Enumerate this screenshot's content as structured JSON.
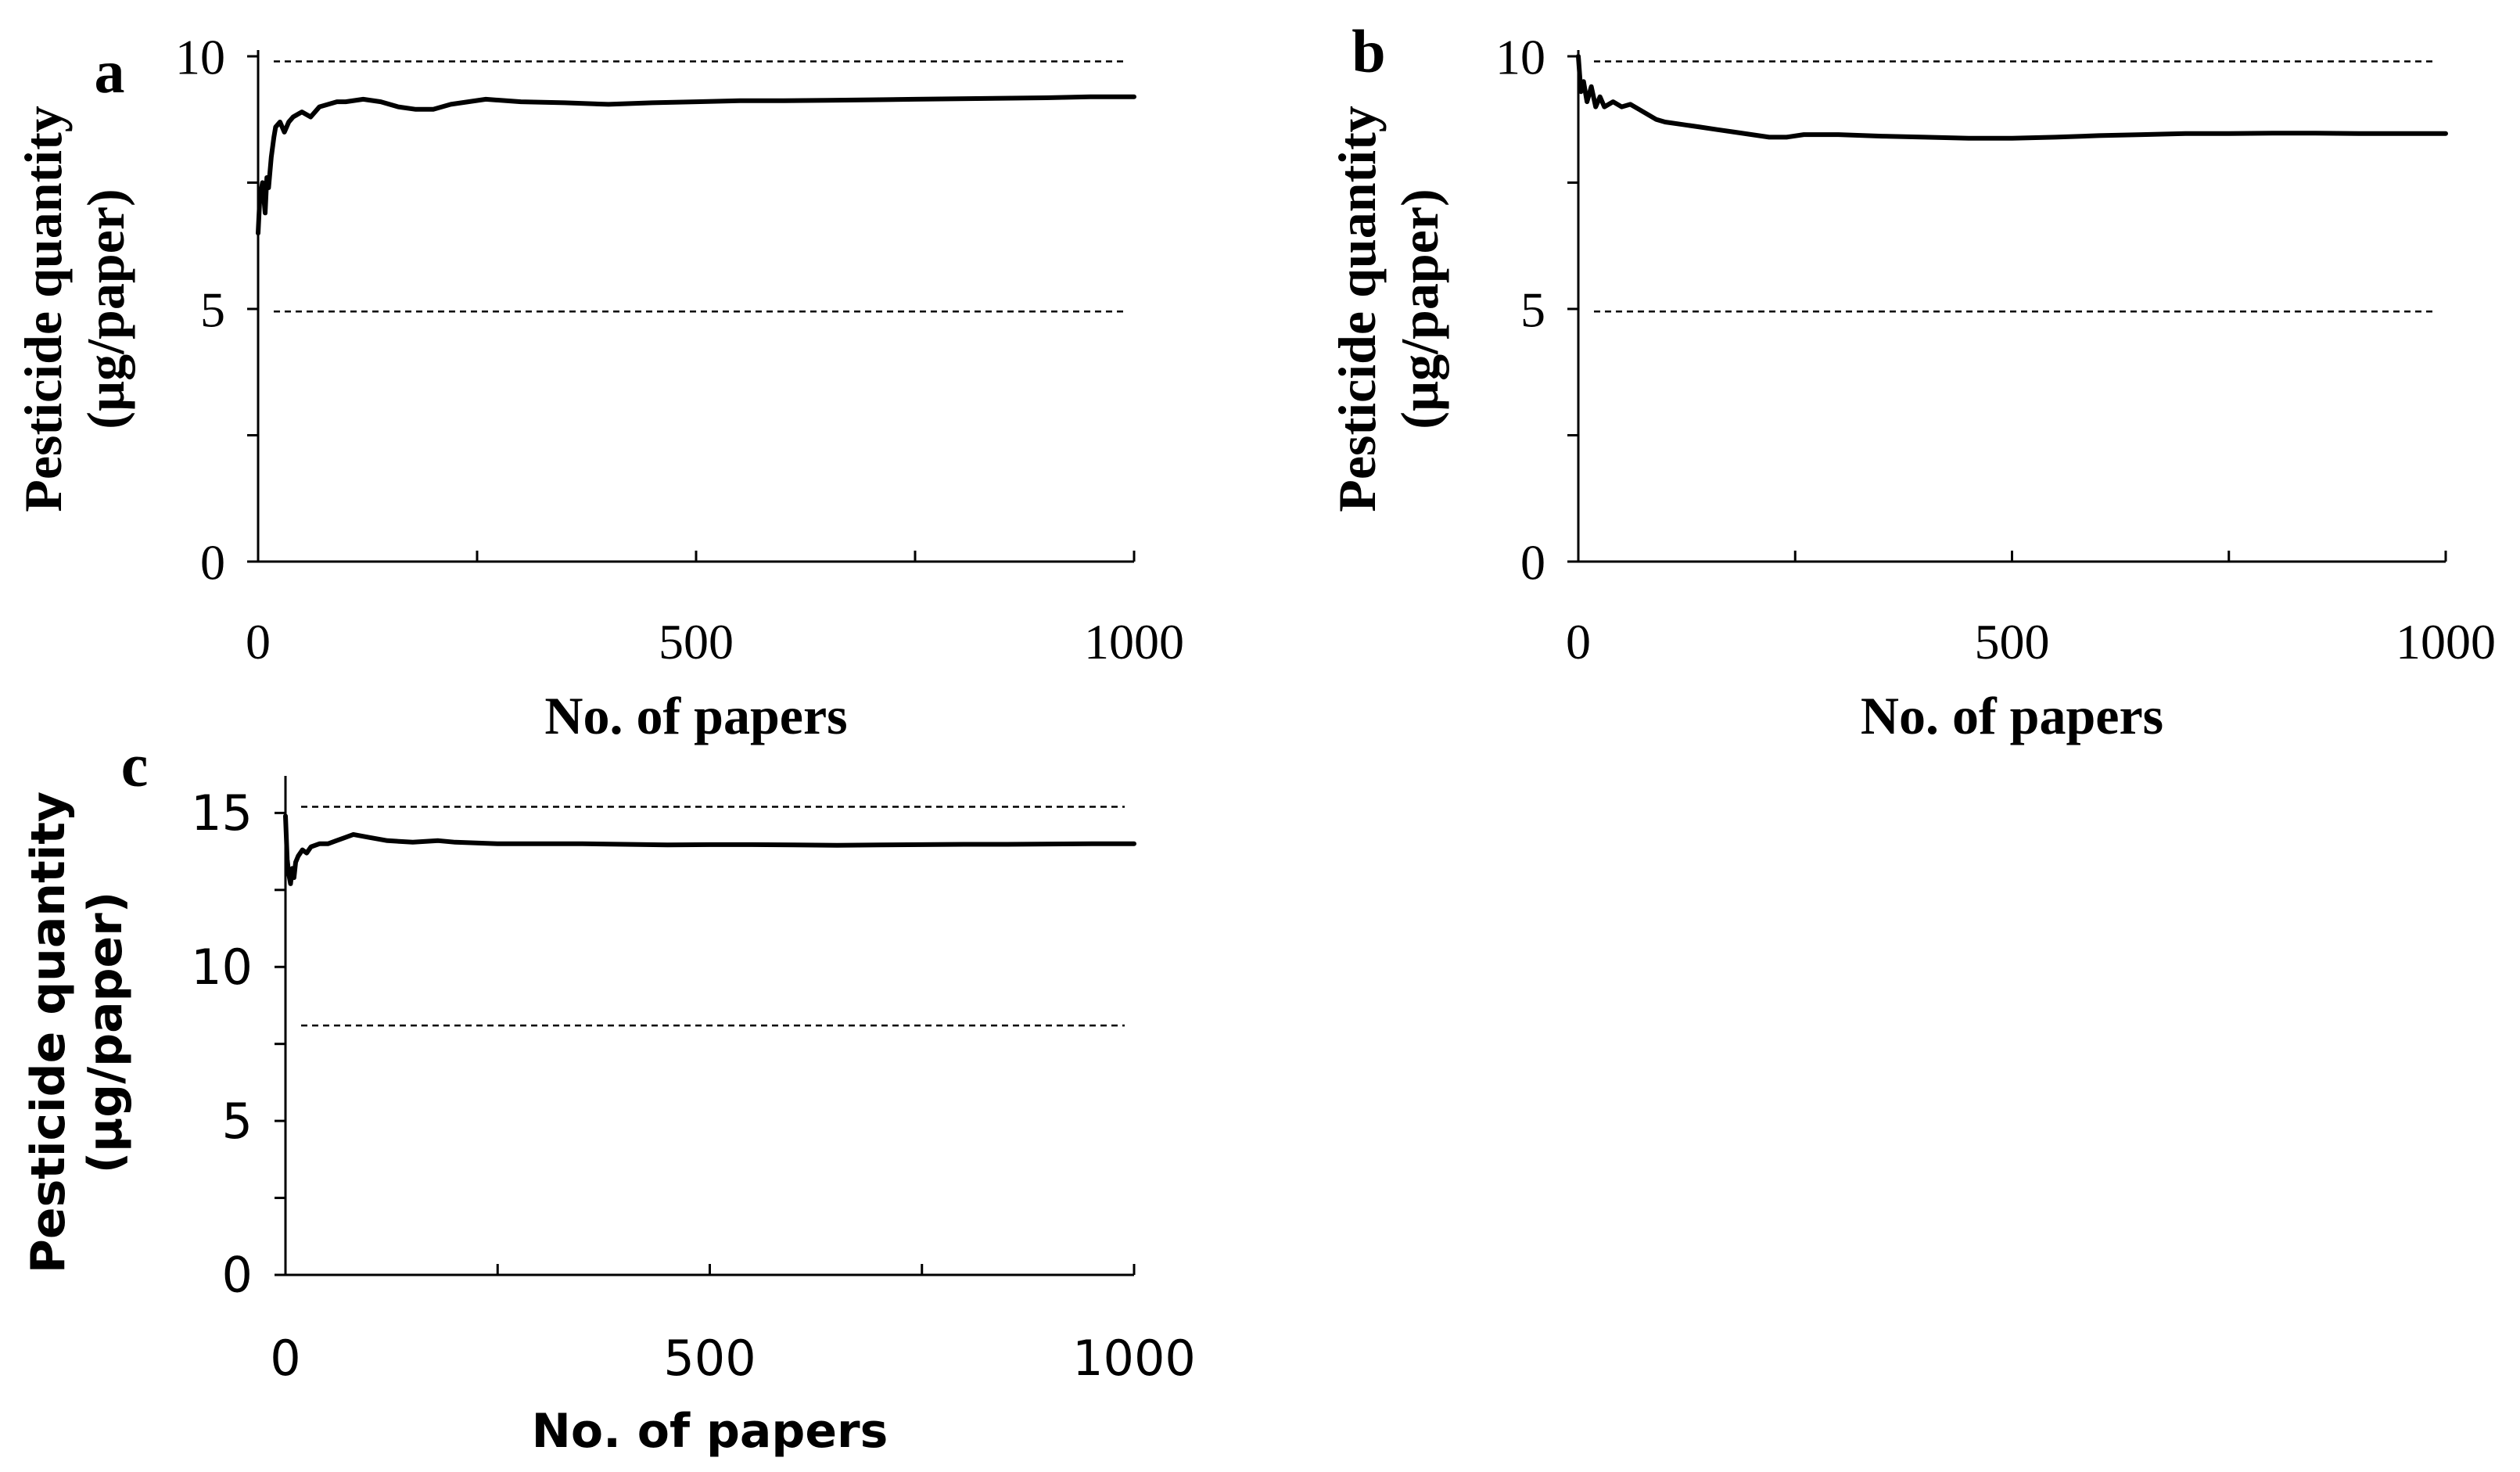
{
  "chart_data": [
    {
      "panel": "a",
      "type": "line",
      "xlabel": "No. of papers",
      "ylabel_line1": "Pesticide quantity",
      "ylabel_line2": "(µg/paper)",
      "xlim": [
        0,
        1000
      ],
      "ylim": [
        0,
        10
      ],
      "x_ticks": [
        0,
        500,
        1000
      ],
      "x_minor_ticks": [
        250,
        750
      ],
      "y_ticks": [
        0,
        5,
        10
      ],
      "y_minor_ticks": [
        2.5,
        7.5
      ],
      "tick_font": "serif",
      "reference_lines": [
        9.9,
        4.95
      ],
      "series": [
        {
          "x": [
            0,
            2,
            5,
            8,
            10,
            12,
            15,
            18,
            20,
            25,
            30,
            35,
            40,
            50,
            60,
            70,
            80,
            90,
            100,
            120,
            140,
            160,
            180,
            200,
            220,
            240,
            260,
            300,
            350,
            400,
            450,
            500,
            550,
            600,
            650,
            700,
            750,
            800,
            850,
            900,
            950,
            1000
          ],
          "y": [
            6.5,
            7.2,
            7.5,
            6.9,
            7.6,
            7.4,
            8.0,
            8.4,
            8.6,
            8.7,
            8.5,
            8.7,
            8.8,
            8.9,
            8.8,
            9.0,
            9.05,
            9.1,
            9.1,
            9.15,
            9.1,
            9.0,
            8.95,
            8.95,
            9.05,
            9.1,
            9.15,
            9.1,
            9.08,
            9.05,
            9.08,
            9.1,
            9.12,
            9.12,
            9.13,
            9.14,
            9.15,
            9.16,
            9.17,
            9.18,
            9.2,
            9.2
          ]
        }
      ]
    },
    {
      "panel": "b",
      "type": "line",
      "xlabel": "No. of papers",
      "ylabel_line1": "Pesticide quantity",
      "ylabel_line2": "(µg/paper)",
      "xlim": [
        0,
        1000
      ],
      "ylim": [
        0,
        10
      ],
      "x_ticks": [
        0,
        500,
        1000
      ],
      "x_minor_ticks": [
        250,
        750
      ],
      "y_ticks": [
        0,
        5,
        10
      ],
      "y_minor_ticks": [
        2.5,
        7.5
      ],
      "tick_font": "serif",
      "reference_lines": [
        9.9,
        4.95
      ],
      "series": [
        {
          "x": [
            0,
            3,
            6,
            10,
            15,
            20,
            25,
            30,
            40,
            50,
            60,
            70,
            80,
            90,
            100,
            120,
            140,
            160,
            180,
            200,
            220,
            240,
            260,
            300,
            350,
            400,
            450,
            500,
            550,
            600,
            650,
            700,
            750,
            800,
            850,
            900,
            950,
            1000
          ],
          "y": [
            10.0,
            9.3,
            9.5,
            9.1,
            9.4,
            9.0,
            9.2,
            9.0,
            9.1,
            9.0,
            9.05,
            8.95,
            8.85,
            8.75,
            8.7,
            8.65,
            8.6,
            8.55,
            8.5,
            8.45,
            8.4,
            8.4,
            8.45,
            8.45,
            8.42,
            8.4,
            8.38,
            8.38,
            8.4,
            8.43,
            8.45,
            8.47,
            8.47,
            8.48,
            8.48,
            8.47,
            8.47,
            8.47
          ]
        }
      ]
    },
    {
      "panel": "c",
      "type": "line",
      "xlabel": "No. of papers",
      "ylabel_line1": "Pesticide quantity",
      "ylabel_line2": "(µg/paper)",
      "xlim": [
        0,
        1000
      ],
      "ylim": [
        0,
        16
      ],
      "x_ticks": [
        0,
        500,
        1000
      ],
      "x_minor_ticks": [
        250,
        750
      ],
      "y_ticks": [
        0,
        5,
        10,
        15
      ],
      "y_minor_ticks": [
        2.5,
        7.5,
        12.5
      ],
      "tick_font": "sans",
      "reference_lines": [
        15.2,
        8.1
      ],
      "series": [
        {
          "x": [
            0,
            2,
            4,
            6,
            8,
            10,
            12,
            15,
            20,
            25,
            30,
            40,
            50,
            60,
            70,
            80,
            90,
            100,
            120,
            150,
            180,
            200,
            250,
            300,
            350,
            400,
            450,
            500,
            550,
            600,
            650,
            700,
            750,
            800,
            850,
            900,
            950,
            1000
          ],
          "y": [
            14.9,
            13.5,
            13.0,
            12.7,
            13.2,
            12.9,
            13.4,
            13.6,
            13.8,
            13.7,
            13.9,
            14.0,
            14.0,
            14.1,
            14.2,
            14.3,
            14.25,
            14.2,
            14.1,
            14.05,
            14.1,
            14.05,
            14.0,
            14.0,
            14.0,
            13.98,
            13.96,
            13.97,
            13.97,
            13.96,
            13.95,
            13.96,
            13.97,
            13.98,
            13.98,
            13.99,
            14.0,
            14.0
          ]
        }
      ]
    }
  ]
}
